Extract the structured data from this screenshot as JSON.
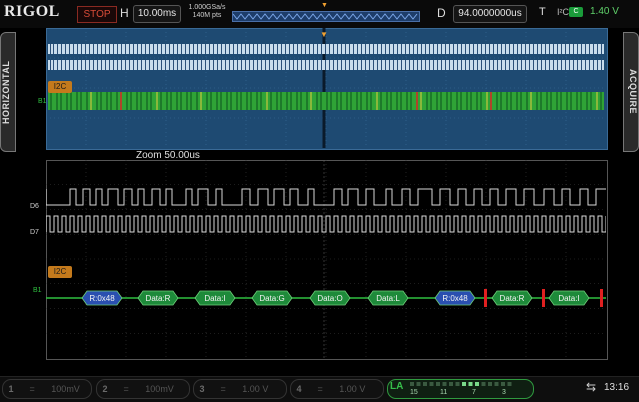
{
  "brand": "RIGOL",
  "status": "STOP",
  "horizontal": {
    "label": "H",
    "timebase": "10.00ms",
    "sample_rate": "1.000GSa/s",
    "memory_depth": "140M pts"
  },
  "delay": {
    "label": "D",
    "value": "94.0000000us"
  },
  "trigger": {
    "label": "T",
    "source": "I²C",
    "badge": "C",
    "level": "1.40 V"
  },
  "side_tabs": {
    "left": "HORIZONTAL",
    "right": "ACQUIRE"
  },
  "zoom_label": "Zoom 50.00us",
  "protocol_label": "I2C",
  "digital_labels": {
    "d6": "D6",
    "d7": "D7",
    "bus_main": "B1",
    "bus_zoom": "B1"
  },
  "packets": [
    "R:0x48",
    "Data:R",
    "Data:I",
    "Data:G",
    "Data:O",
    "Data:L",
    "R:0x48",
    "Data:R",
    "Data:I"
  ],
  "channels": [
    {
      "num": "1",
      "scale": "100mV"
    },
    {
      "num": "2",
      "scale": "100mV"
    },
    {
      "num": "3",
      "scale": "1.00 V"
    },
    {
      "num": "4",
      "scale": "1.00 V"
    }
  ],
  "la": {
    "label": "LA",
    "groups": [
      "15",
      "11",
      "7",
      "3"
    ]
  },
  "clock": "13:16",
  "colors": {
    "accent": "#f0a030",
    "bus_green": "#27a336",
    "packet_green": "#1e8a3a",
    "packet_blue": "#2a4fb0",
    "error_red": "#e02020"
  }
}
